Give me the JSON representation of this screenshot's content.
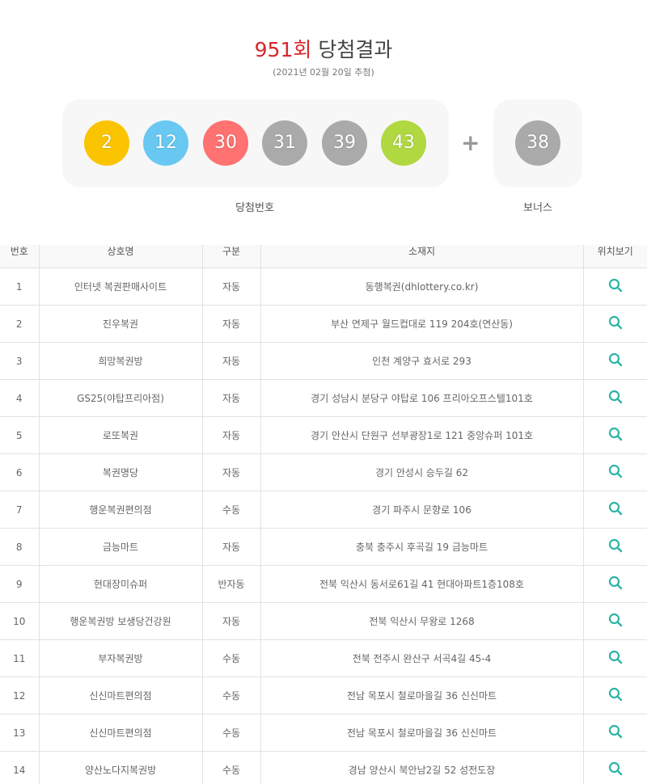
{
  "header": {
    "round": "951회",
    "title": "당첨결과",
    "date": "(2021년 02월 20일 추첨)"
  },
  "numbers": {
    "main": [
      "2",
      "12",
      "30",
      "31",
      "39",
      "43"
    ],
    "bonus": "38",
    "plus": "+",
    "main_label": "당첨번호",
    "bonus_label": "보너스",
    "colors": [
      "#fbc400",
      "#69c8f2",
      "#ff7272",
      "#aaaaaa",
      "#aaaaaa",
      "#b0d840"
    ],
    "bonus_color": "#aaaaaa"
  },
  "table": {
    "headers": [
      "번호",
      "상호명",
      "구분",
      "소재지",
      "위치보기"
    ],
    "accent": "#2cb5a6",
    "rows": [
      [
        "1",
        "인터넷 복권판매사이트",
        "자동",
        "동행복권(dhlottery.co.kr)"
      ],
      [
        "2",
        "진우복권",
        "자동",
        "부산 연제구 월드컵대로 119 204호(연산동)"
      ],
      [
        "3",
        "희망복권방",
        "자동",
        "인천 계양구 효서로 293"
      ],
      [
        "4",
        "GS25(야탑프리아점)",
        "자동",
        "경기 성남시 분당구 야탑로 106 프리아오프스텔101호"
      ],
      [
        "5",
        "로또복권",
        "자동",
        "경기 안산시 단원구 선부광장1로 121 중앙슈퍼 101호"
      ],
      [
        "6",
        "복권명당",
        "자동",
        "경기 안성시 승두길 62"
      ],
      [
        "7",
        "행운복권편의점",
        "수동",
        "경기 파주시 문향로 106"
      ],
      [
        "8",
        "금능마트",
        "자동",
        "충북 충주시 후곡길 19 금능마트"
      ],
      [
        "9",
        "현대장미슈퍼",
        "반자동",
        "전북 익산시 동서로61길 41 현대아파트1층108호"
      ],
      [
        "10",
        "행운복권방 보생당건강원",
        "자동",
        "전북 익산시 무왕로 1268"
      ],
      [
        "11",
        "부자복권방",
        "수동",
        "전북 전주시 완산구 서곡4길 45-4"
      ],
      [
        "12",
        "신신마트편의점",
        "수동",
        "전남 목포시 철로마을길 36 신신마트"
      ],
      [
        "13",
        "신신마트편의점",
        "수동",
        "전남 목포시 철로마을길 36 신신마트"
      ],
      [
        "14",
        "양산노다지복권방",
        "수동",
        "경남 양산시 북안남2길 52 성전도장"
      ]
    ]
  }
}
